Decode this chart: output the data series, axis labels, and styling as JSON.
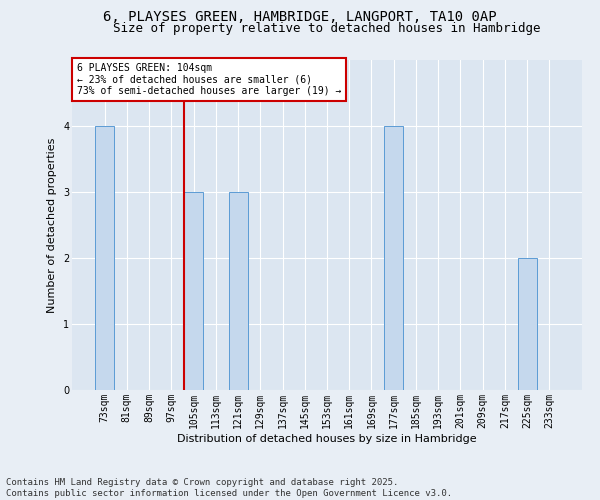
{
  "title_line1": "6, PLAYSES GREEN, HAMBRIDGE, LANGPORT, TA10 0AP",
  "title_line2": "Size of property relative to detached houses in Hambridge",
  "xlabel": "Distribution of detached houses by size in Hambridge",
  "ylabel": "Number of detached properties",
  "categories": [
    "73sqm",
    "81sqm",
    "89sqm",
    "97sqm",
    "105sqm",
    "113sqm",
    "121sqm",
    "129sqm",
    "137sqm",
    "145sqm",
    "153sqm",
    "161sqm",
    "169sqm",
    "177sqm",
    "185sqm",
    "193sqm",
    "201sqm",
    "209sqm",
    "217sqm",
    "225sqm",
    "233sqm"
  ],
  "values": [
    4,
    0,
    0,
    0,
    3,
    0,
    3,
    0,
    0,
    0,
    0,
    0,
    0,
    4,
    0,
    0,
    0,
    0,
    0,
    2,
    0
  ],
  "bar_color": "#c5d8ed",
  "bar_edge_color": "#5b9bd5",
  "subject_line_color": "#cc0000",
  "subject_line_index": 3.57,
  "annotation_text": "6 PLAYSES GREEN: 104sqm\n← 23% of detached houses are smaller (6)\n73% of semi-detached houses are larger (19) →",
  "ylim_max": 5,
  "yticks": [
    0,
    1,
    2,
    3,
    4
  ],
  "fig_bg_color": "#e8eef5",
  "plot_bg_color": "#dce6f1",
  "grid_color": "#ffffff",
  "footer_line1": "Contains HM Land Registry data © Crown copyright and database right 2025.",
  "footer_line2": "Contains public sector information licensed under the Open Government Licence v3.0.",
  "title_fontsize": 10,
  "subtitle_fontsize": 9,
  "axis_label_fontsize": 8,
  "tick_fontsize": 7,
  "ann_fontsize": 7,
  "footer_fontsize": 6.5
}
